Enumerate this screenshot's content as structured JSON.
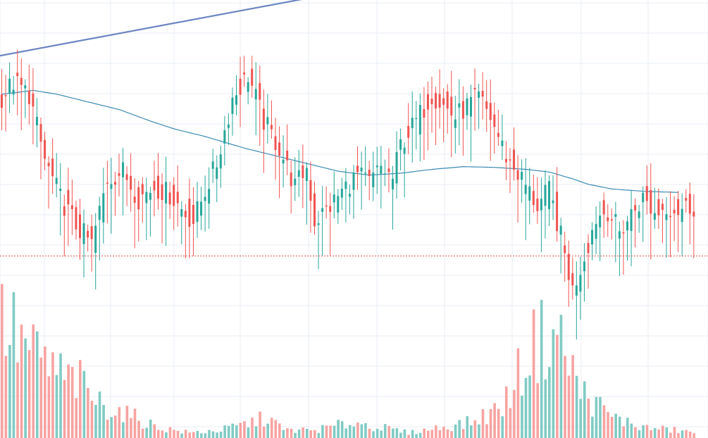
{
  "chart_data": {
    "type": "candlestick",
    "title": "",
    "xlabel": "",
    "ylabel": "",
    "ylim": [
      0,
      100
    ],
    "grid": true,
    "legend": "none",
    "colors": {
      "up": "#26a69a",
      "down": "#ef5350",
      "up_volume": "#80cbc4",
      "down_volume": "#f7a3a1",
      "moving_average": "#3d8ab4",
      "trend_line": "#6b86c2",
      "price_line": "#e05353",
      "grid": "#e8edf4"
    },
    "price_line": 35,
    "trend_line": {
      "start": 87,
      "end": 103
    },
    "series": [
      {
        "type": "candles",
        "anchors": [
          [
            0,
            75
          ],
          [
            4,
            80
          ],
          [
            8,
            77
          ],
          [
            12,
            60
          ],
          [
            16,
            50
          ],
          [
            20,
            43
          ],
          [
            24,
            38
          ],
          [
            28,
            55
          ],
          [
            32,
            57
          ],
          [
            36,
            50
          ],
          [
            40,
            53
          ],
          [
            44,
            51
          ],
          [
            48,
            46
          ],
          [
            50,
            44
          ],
          [
            53,
            52
          ],
          [
            56,
            59
          ],
          [
            60,
            76
          ],
          [
            64,
            82
          ],
          [
            68,
            70
          ],
          [
            72,
            63
          ],
          [
            76,
            53
          ],
          [
            79,
            58
          ],
          [
            81,
            44
          ],
          [
            85,
            48
          ],
          [
            89,
            53
          ],
          [
            92,
            56
          ],
          [
            95,
            54
          ],
          [
            98,
            58
          ],
          [
            101,
            55
          ],
          [
            103,
            64
          ],
          [
            107,
            70
          ],
          [
            111,
            77
          ],
          [
            114,
            74
          ],
          [
            117,
            71
          ],
          [
            120,
            74
          ],
          [
            123,
            76
          ],
          [
            126,
            71
          ],
          [
            130,
            61
          ],
          [
            134,
            55
          ],
          [
            138,
            48
          ],
          [
            141,
            52
          ],
          [
            144,
            40
          ],
          [
            147,
            26
          ],
          [
            150,
            35
          ],
          [
            153,
            45
          ],
          [
            156,
            47
          ],
          [
            159,
            41
          ],
          [
            162,
            46
          ],
          [
            165,
            50
          ],
          [
            168,
            46
          ],
          [
            171,
            48
          ],
          [
            174,
            47
          ],
          [
            177,
            48
          ]
        ]
      },
      {
        "type": "volume",
        "anchors": [
          [
            0,
            45
          ],
          [
            8,
            32
          ],
          [
            16,
            23
          ],
          [
            20,
            21
          ],
          [
            24,
            14
          ],
          [
            32,
            9
          ],
          [
            40,
            4
          ],
          [
            48,
            2
          ],
          [
            56,
            3
          ],
          [
            64,
            6
          ],
          [
            68,
            8
          ],
          [
            72,
            3
          ],
          [
            80,
            3
          ],
          [
            90,
            6
          ],
          [
            104,
            2
          ],
          [
            120,
            6
          ],
          [
            128,
            12
          ],
          [
            136,
            36
          ],
          [
            142,
            40
          ],
          [
            148,
            18
          ],
          [
            156,
            8
          ],
          [
            164,
            4
          ],
          [
            172,
            3
          ],
          [
            178,
            2
          ]
        ]
      },
      {
        "type": "moving_average",
        "anchors": [
          [
            0,
            77
          ],
          [
            8,
            78
          ],
          [
            14,
            77
          ],
          [
            22,
            75
          ],
          [
            30,
            73
          ],
          [
            38,
            70
          ],
          [
            44,
            68
          ],
          [
            52,
            66
          ],
          [
            62,
            63
          ],
          [
            70,
            61
          ],
          [
            78,
            59
          ],
          [
            86,
            57
          ],
          [
            94,
            56
          ],
          [
            102,
            56.5
          ],
          [
            110,
            57.5
          ],
          [
            118,
            58.2
          ],
          [
            126,
            58
          ],
          [
            134,
            57.5
          ],
          [
            140,
            56.8
          ],
          [
            146,
            55
          ],
          [
            150,
            53.6
          ],
          [
            156,
            52.4
          ],
          [
            164,
            51.8
          ],
          [
            173,
            51.5
          ]
        ]
      }
    ]
  }
}
